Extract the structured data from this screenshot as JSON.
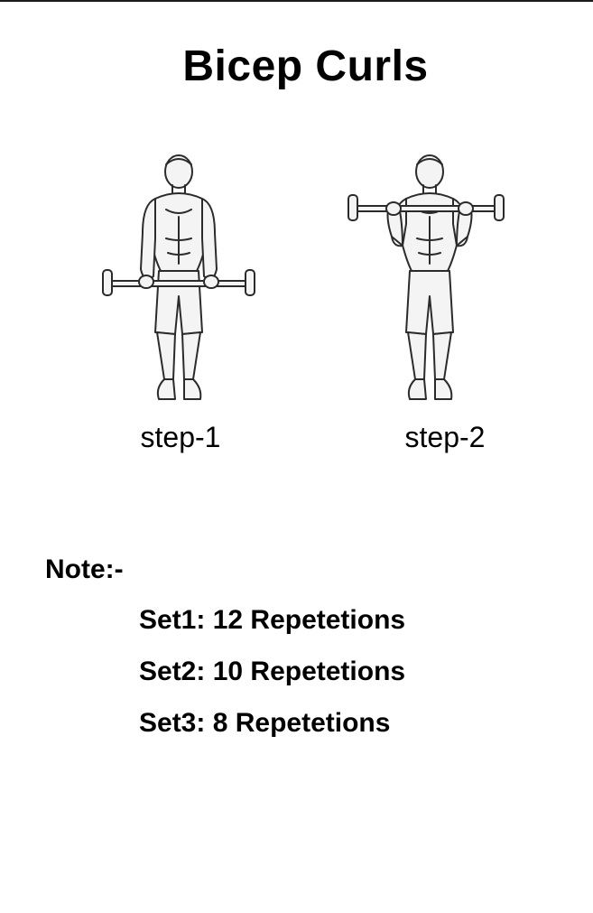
{
  "title": "Bicep Curls",
  "steps": [
    {
      "label": "step-1",
      "illustration": "man-barbell-lowered-icon"
    },
    {
      "label": "step-2",
      "illustration": "man-barbell-curled-icon"
    }
  ],
  "note": {
    "heading": "Note:-",
    "sets": [
      "Set1: 12 Repetetions",
      "Set2: 10 Repetetions",
      "Set3: 8 Repetetions"
    ]
  },
  "colors": {
    "text": "#000000",
    "background": "#ffffff",
    "sketch_stroke": "#2b2b2b",
    "sketch_fill": "#f4f4f4"
  }
}
